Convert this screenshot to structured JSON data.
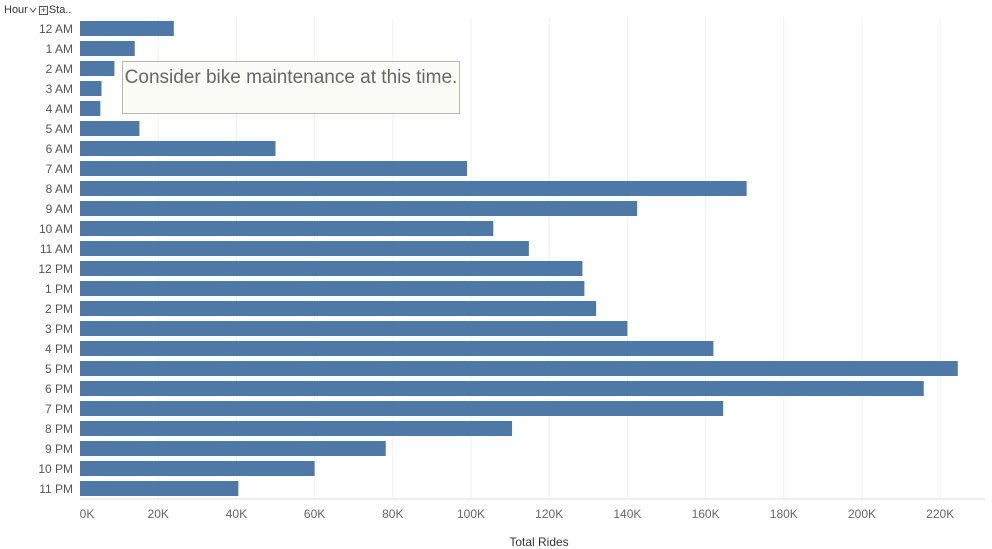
{
  "header": {
    "dimension_label": "Hour",
    "expand_label": "+",
    "measure_label": "Sta.."
  },
  "annotation": {
    "text": "Consider bike maintenance at this time."
  },
  "chart_data": {
    "type": "bar",
    "orientation": "horizontal",
    "categories": [
      "12 AM",
      "1 AM",
      "2 AM",
      "3 AM",
      "4 AM",
      "5 AM",
      "6 AM",
      "7 AM",
      "8 AM",
      "9 AM",
      "10 AM",
      "11 AM",
      "12 PM",
      "1 PM",
      "2 PM",
      "3 PM",
      "4 PM",
      "5 PM",
      "6 PM",
      "7 PM",
      "8 PM",
      "9 PM",
      "10 PM",
      "11 PM"
    ],
    "values": [
      24000,
      14000,
      8800,
      5500,
      5200,
      15200,
      50000,
      99000,
      170500,
      142500,
      105700,
      114800,
      128500,
      129000,
      132000,
      140000,
      162000,
      224500,
      215800,
      164500,
      110500,
      78200,
      60000,
      40500
    ],
    "xlabel": "Total Rides",
    "ylabel": "",
    "xlim": [
      0,
      230000
    ],
    "ticks": [
      "0K",
      "20K",
      "40K",
      "60K",
      "80K",
      "100K",
      "120K",
      "140K",
      "160K",
      "180K",
      "200K",
      "220K"
    ],
    "tick_values": [
      0,
      20000,
      40000,
      60000,
      80000,
      100000,
      120000,
      140000,
      160000,
      180000,
      200000,
      220000
    ],
    "grid": true,
    "bar_color": "#4e79a7"
  }
}
